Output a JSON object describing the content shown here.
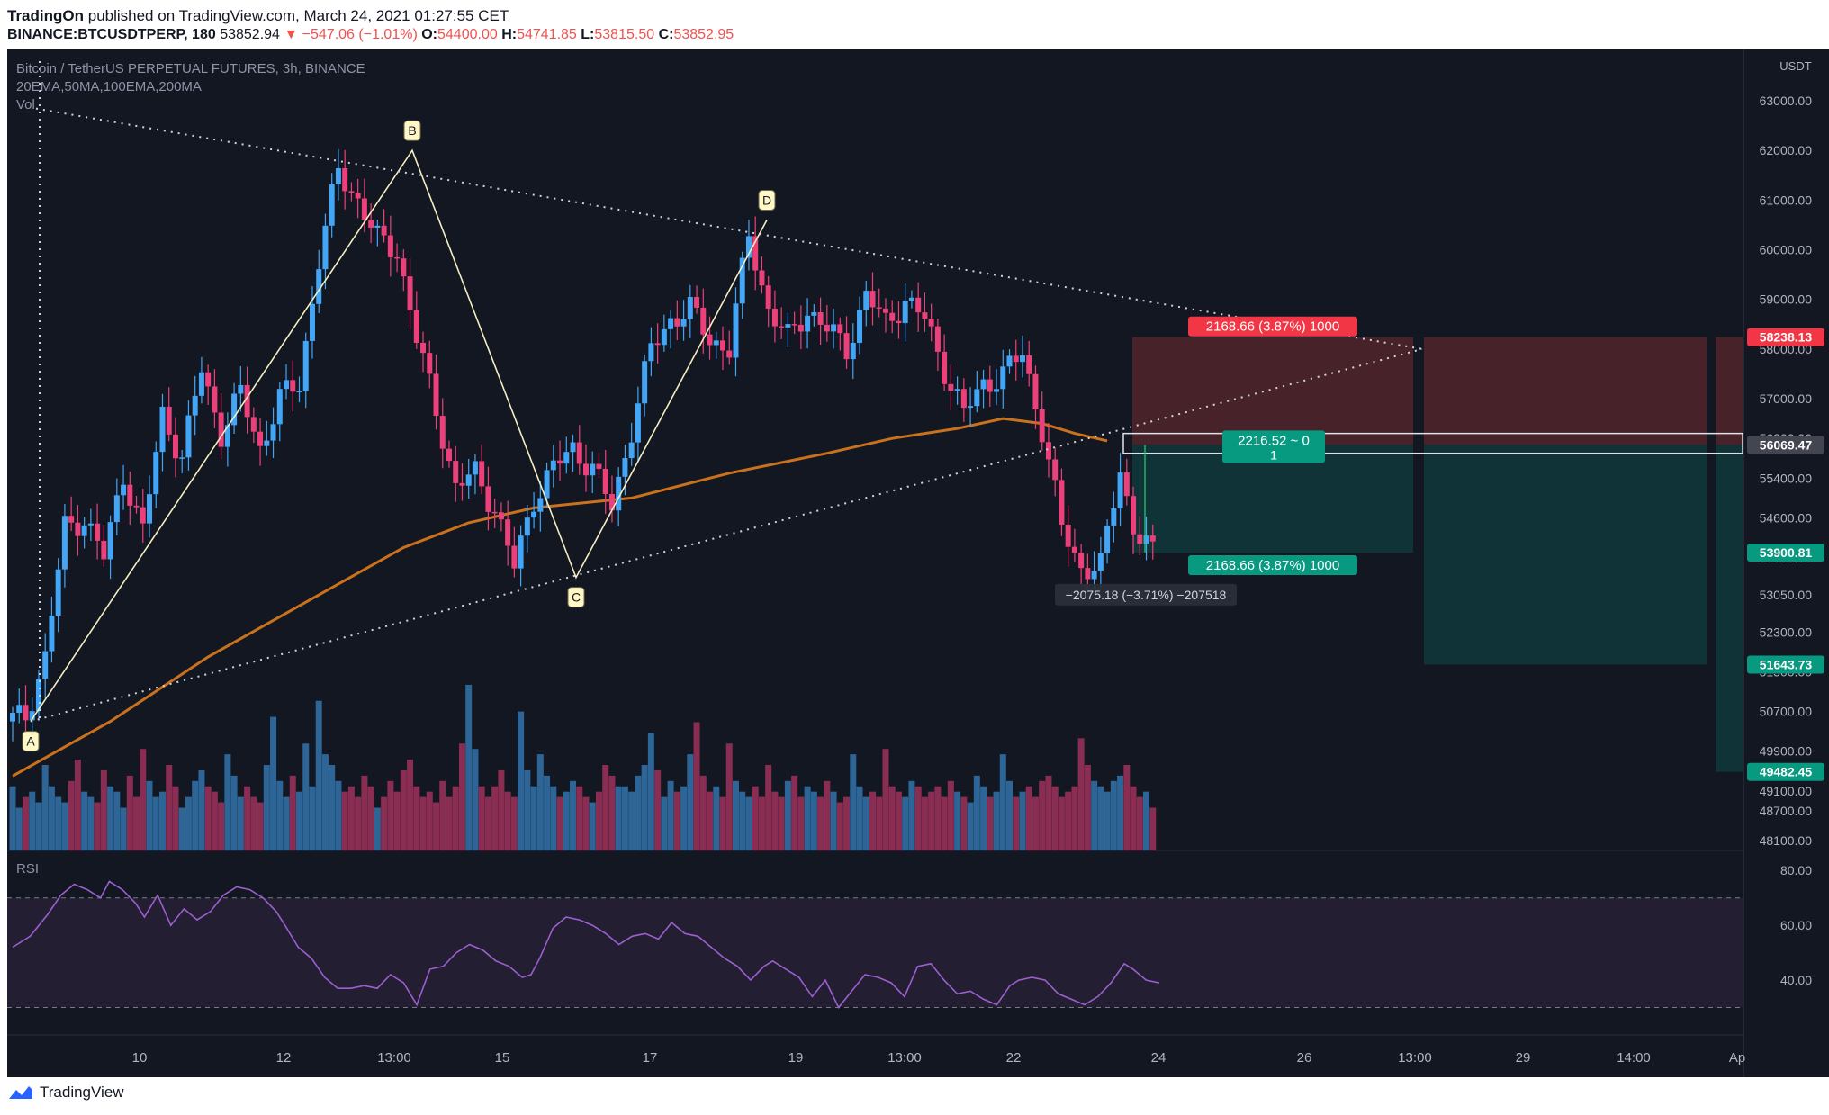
{
  "header": {
    "author": "TradingOn",
    "published_text": "published on TradingView.com, March 24, 2021 01:27:55 CET",
    "symbol": "BINANCE:BTCUSDTPERP, 180",
    "last": "53852.94",
    "change": "−547.06 (−1.01%)",
    "o_label": "O:",
    "o": "54400.00",
    "h_label": "H:",
    "h": "54741.85",
    "l_label": "L:",
    "l": "53815.50",
    "c_label": "C:",
    "c": "53852.95"
  },
  "overlay": {
    "title": "Bitcoin / TetherUS PERPETUAL FUTURES, 3h, BINANCE",
    "indicators": "20EMA,50MA,100EMA,200MA",
    "vol": "Vol",
    "rsi": "RSI"
  },
  "footer": {
    "brand": "TradingView"
  },
  "colors": {
    "background": "#131722",
    "up": "#42a5f5",
    "down": "#ec407a",
    "ma": "#c9711c",
    "rsi_line": "#9c5fcf",
    "stop_zone": "#4a2329",
    "target_zone": "#10353a",
    "pattern": "#f4eec0"
  },
  "chart_data": {
    "type": "candlestick",
    "title": "Bitcoin / TetherUS PERPETUAL FUTURES, 3h, BINANCE",
    "currency": "USDT",
    "price_axis": [
      63000,
      62000,
      61000,
      60000,
      59000,
      58000,
      57000,
      56200,
      55400,
      54600,
      53800,
      53050,
      52300,
      51500,
      50700,
      49900,
      49100,
      48700,
      48100
    ],
    "rsi_axis": [
      80,
      60,
      40
    ],
    "ylim": [
      47900,
      63400
    ],
    "x_ticks": [
      "10",
      "12",
      "13:00",
      "15",
      "17",
      "19",
      "13:00",
      "22",
      "24",
      "26",
      "13:00",
      "29",
      "14:00",
      "Ap"
    ],
    "candles_start_price": 50500,
    "price_path": [
      [
        0,
        50500
      ],
      [
        3,
        50600
      ],
      [
        6,
        51800
      ],
      [
        9,
        54400
      ],
      [
        12,
        54600
      ],
      [
        15,
        53800
      ],
      [
        18,
        55500
      ],
      [
        21,
        54300
      ],
      [
        24,
        56700
      ],
      [
        27,
        55800
      ],
      [
        30,
        57600
      ],
      [
        33,
        56300
      ],
      [
        36,
        57100
      ],
      [
        39,
        56000
      ],
      [
        42,
        57000
      ],
      [
        45,
        57300
      ],
      [
        48,
        59800
      ],
      [
        51,
        61600
      ],
      [
        54,
        61000
      ],
      [
        57,
        60200
      ],
      [
        60,
        60000
      ],
      [
        63,
        58200
      ],
      [
        66,
        56800
      ],
      [
        69,
        55200
      ],
      [
        72,
        55500
      ],
      [
        75,
        54800
      ],
      [
        78,
        53600
      ],
      [
        81,
        55000
      ],
      [
        84,
        55600
      ],
      [
        87,
        56000
      ],
      [
        90,
        55600
      ],
      [
        93,
        54800
      ],
      [
        96,
        56400
      ],
      [
        99,
        58000
      ],
      [
        102,
        58600
      ],
      [
        105,
        58800
      ],
      [
        108,
        58200
      ],
      [
        111,
        58000
      ],
      [
        114,
        60300
      ],
      [
        117,
        58800
      ],
      [
        120,
        58200
      ],
      [
        123,
        58800
      ],
      [
        126,
        58400
      ],
      [
        129,
        58000
      ],
      [
        132,
        59100
      ],
      [
        135,
        58500
      ],
      [
        138,
        59000
      ],
      [
        141,
        58600
      ],
      [
        144,
        57600
      ],
      [
        147,
        56700
      ],
      [
        150,
        57300
      ],
      [
        153,
        57500
      ],
      [
        156,
        57900
      ],
      [
        159,
        56400
      ],
      [
        162,
        54400
      ],
      [
        165,
        53600
      ],
      [
        168,
        53600
      ],
      [
        171,
        55600
      ],
      [
        173,
        54400
      ],
      [
        176,
        53850
      ]
    ],
    "ma_path": [
      [
        0,
        49400
      ],
      [
        15,
        50500
      ],
      [
        30,
        51800
      ],
      [
        45,
        52900
      ],
      [
        60,
        54000
      ],
      [
        70,
        54500
      ],
      [
        80,
        54800
      ],
      [
        95,
        55000
      ],
      [
        110,
        55500
      ],
      [
        125,
        55900
      ],
      [
        135,
        56200
      ],
      [
        145,
        56400
      ],
      [
        152,
        56600
      ],
      [
        158,
        56500
      ],
      [
        163,
        56300
      ],
      [
        168,
        56150
      ]
    ],
    "volume": [
      1.2,
      0.8,
      1.0,
      1.1,
      0.9,
      1.6,
      1.2,
      1.0,
      0.9,
      1.3,
      1.7,
      1.1,
      1.0,
      0.9,
      1.5,
      1.2,
      1.1,
      0.8,
      1.4,
      1.0,
      1.9,
      1.3,
      1.0,
      1.1,
      1.6,
      1.2,
      0.8,
      1.0,
      1.3,
      1.5,
      1.2,
      1.1,
      0.9,
      1.8,
      1.4,
      1.0,
      1.2,
      1.0,
      0.9,
      1.6,
      2.5,
      1.3,
      1.0,
      1.4,
      1.1,
      2.0,
      1.2,
      2.8,
      1.8,
      1.6,
      1.3,
      1.1,
      1.2,
      1.0,
      1.4,
      1.2,
      0.8,
      1.0,
      1.3,
      1.1,
      1.5,
      1.7,
      1.2,
      1.0,
      1.1,
      0.9,
      1.3,
      1.0,
      1.2,
      2.0,
      3.1,
      1.9,
      1.2,
      1.0,
      1.2,
      1.5,
      1.1,
      1.0,
      2.6,
      1.5,
      1.2,
      1.8,
      1.4,
      1.2,
      1.0,
      1.1,
      1.3,
      1.2,
      1.0,
      0.9,
      1.1,
      1.6,
      1.4,
      1.2,
      1.2,
      1.1,
      1.4,
      1.6,
      2.2,
      1.5,
      1.0,
      1.3,
      1.1,
      1.2,
      1.8,
      2.4,
      1.4,
      1.1,
      1.2,
      1.0,
      2.0,
      1.3,
      1.1,
      1.0,
      1.2,
      1.0,
      1.6,
      1.1,
      1.0,
      1.3,
      1.4,
      1.0,
      1.2,
      1.1,
      1.0,
      1.3,
      1.1,
      0.9,
      1.0,
      1.8,
      1.2,
      1.0,
      1.1,
      1.0,
      1.9,
      1.2,
      1.1,
      1.0,
      1.3,
      1.2,
      1.0,
      1.1,
      1.2,
      1.0,
      1.3,
      1.1,
      1.0,
      0.9,
      1.4,
      1.2,
      1.0,
      1.1,
      1.8,
      1.3,
      1.0,
      1.1,
      1.2,
      1.0,
      1.3,
      1.4,
      1.2,
      1.0,
      1.1,
      1.2,
      2.1,
      1.6,
      1.3,
      1.2,
      1.1,
      1.3,
      1.4,
      1.6,
      1.2,
      1.0,
      1.1,
      0.8,
      1.0,
      1.2,
      1.0,
      0.7
    ],
    "rsi_path": [
      [
        0,
        52
      ],
      [
        4,
        56
      ],
      [
        8,
        64
      ],
      [
        11,
        71
      ],
      [
        14,
        75
      ],
      [
        17,
        73
      ],
      [
        20,
        70
      ],
      [
        22,
        76
      ],
      [
        25,
        73
      ],
      [
        28,
        68
      ],
      [
        30,
        63
      ],
      [
        33,
        71
      ],
      [
        36,
        60
      ],
      [
        39,
        66
      ],
      [
        42,
        62
      ],
      [
        45,
        65
      ],
      [
        48,
        71
      ],
      [
        51,
        74
      ],
      [
        54,
        73
      ],
      [
        57,
        70
      ],
      [
        60,
        65
      ],
      [
        62,
        60
      ],
      [
        65,
        52
      ],
      [
        68,
        48
      ],
      [
        71,
        41
      ],
      [
        74,
        37
      ],
      [
        77,
        37
      ],
      [
        80,
        38
      ],
      [
        83,
        37
      ],
      [
        86,
        42
      ],
      [
        89,
        39
      ],
      [
        92,
        31
      ],
      [
        95,
        44
      ],
      [
        98,
        45
      ],
      [
        101,
        50
      ],
      [
        104,
        53
      ],
      [
        107,
        51
      ],
      [
        110,
        47
      ],
      [
        113,
        45
      ],
      [
        116,
        41
      ],
      [
        118,
        42
      ],
      [
        120,
        48
      ],
      [
        123,
        59
      ],
      [
        126,
        63
      ],
      [
        129,
        62
      ],
      [
        132,
        60
      ],
      [
        135,
        57
      ],
      [
        138,
        53
      ],
      [
        141,
        56
      ],
      [
        144,
        57
      ],
      [
        147,
        55
      ],
      [
        150,
        61
      ],
      [
        153,
        57
      ],
      [
        156,
        56
      ],
      [
        159,
        52
      ],
      [
        162,
        48
      ],
      [
        165,
        45
      ],
      [
        168,
        40
      ],
      [
        171,
        45
      ],
      [
        173,
        47
      ],
      [
        176,
        44
      ],
      [
        179,
        41
      ],
      [
        182,
        34
      ],
      [
        185,
        40
      ],
      [
        188,
        30
      ],
      [
        191,
        36
      ],
      [
        194,
        42
      ],
      [
        197,
        41
      ],
      [
        200,
        39
      ],
      [
        203,
        34
      ],
      [
        206,
        45
      ],
      [
        209,
        46
      ],
      [
        212,
        40
      ],
      [
        215,
        35
      ],
      [
        218,
        36
      ],
      [
        221,
        33
      ],
      [
        224,
        31
      ],
      [
        227,
        38
      ],
      [
        229,
        40
      ],
      [
        232,
        41
      ],
      [
        235,
        40
      ],
      [
        238,
        35
      ],
      [
        241,
        33
      ],
      [
        244,
        31
      ],
      [
        247,
        34
      ],
      [
        250,
        39
      ],
      [
        253,
        46
      ],
      [
        255,
        44
      ],
      [
        258,
        40
      ],
      [
        261,
        39
      ]
    ],
    "rsi_bands": [
      70,
      30
    ],
    "pattern": {
      "points": [
        {
          "label": "A",
          "price": 50500
        },
        {
          "label": "B",
          "price": 62000
        },
        {
          "label": "C",
          "price": 53400
        },
        {
          "label": "D",
          "price": 60600
        }
      ],
      "upper_trendline": "62700 to 58000",
      "lower_trendline": "50500 to 58000"
    },
    "positions": [
      {
        "label": "2168.66 (3.87%) 1000",
        "kind": "stop",
        "price": 58238.13
      },
      {
        "label": "2216.52 ~ 0",
        "qty": "1",
        "kind": "entry",
        "price": 56069.47
      },
      {
        "label": "2168.66 (3.87%) 1000",
        "kind": "target",
        "price": 53900.81
      }
    ],
    "measure_label": "−2075.18 (−3.71%) −207518",
    "price_tags": [
      {
        "price": 58238.13,
        "label": "58238.13",
        "kind": "red"
      },
      {
        "price": 56069.47,
        "label": "56069.47",
        "kind": "grey"
      },
      {
        "price": 53900.81,
        "label": "53900.81",
        "kind": "green"
      },
      {
        "price": 51643.73,
        "label": "51643.73",
        "kind": "green"
      },
      {
        "price": 49482.45,
        "label": "49482.45",
        "kind": "green"
      }
    ]
  }
}
